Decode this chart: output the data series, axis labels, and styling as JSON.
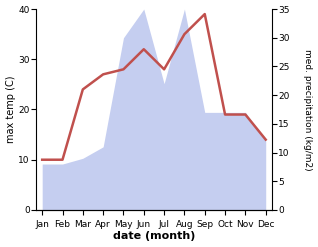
{
  "months": [
    "Jan",
    "Feb",
    "Mar",
    "Apr",
    "May",
    "Jun",
    "Jul",
    "Aug",
    "Sep",
    "Oct",
    "Nov",
    "Dec"
  ],
  "temperature": [
    10,
    10,
    24,
    27,
    28,
    32,
    28,
    35,
    39,
    19,
    19,
    14
  ],
  "precipitation": [
    8,
    8,
    9,
    11,
    30,
    35,
    22,
    35,
    17,
    17,
    17,
    12
  ],
  "temp_color": "#c0504d",
  "precip_fill_color": "#c5cef0",
  "temp_ylim": [
    0,
    40
  ],
  "precip_ylim": [
    0,
    35
  ],
  "temp_yticks": [
    0,
    10,
    20,
    30,
    40
  ],
  "precip_yticks": [
    0,
    5,
    10,
    15,
    20,
    25,
    30,
    35
  ],
  "xlabel": "date (month)",
  "ylabel_left": "max temp (C)",
  "ylabel_right": "med. precipitation (kg/m2)",
  "figsize": [
    3.18,
    2.47
  ],
  "dpi": 100
}
